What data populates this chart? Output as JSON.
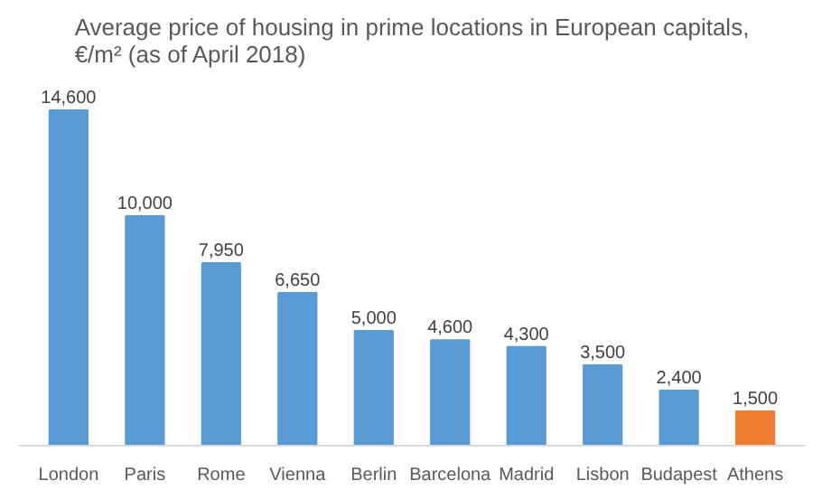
{
  "chart_data": {
    "type": "bar",
    "title": "Average price of housing in prime locations in European capitals,\n€/m² (as of April 2018)",
    "categories": [
      "London",
      "Paris",
      "Rome",
      "Vienna",
      "Berlin",
      "Barcelona",
      "Madrid",
      "Lisbon",
      "Budapest",
      "Athens"
    ],
    "values": [
      14600,
      10000,
      7950,
      6650,
      5000,
      4600,
      4300,
      3500,
      2400,
      1500
    ],
    "colors": [
      "#5b9bd5",
      "#5b9bd5",
      "#5b9bd5",
      "#5b9bd5",
      "#5b9bd5",
      "#5b9bd5",
      "#5b9bd5",
      "#5b9bd5",
      "#5b9bd5",
      "#ed7d31"
    ],
    "value_labels": [
      "14,600",
      "10,000",
      "7,950",
      "6,650",
      "5,000",
      "4,600",
      "4,300",
      "3,500",
      "2,400",
      "1,500"
    ],
    "grid": false
  }
}
